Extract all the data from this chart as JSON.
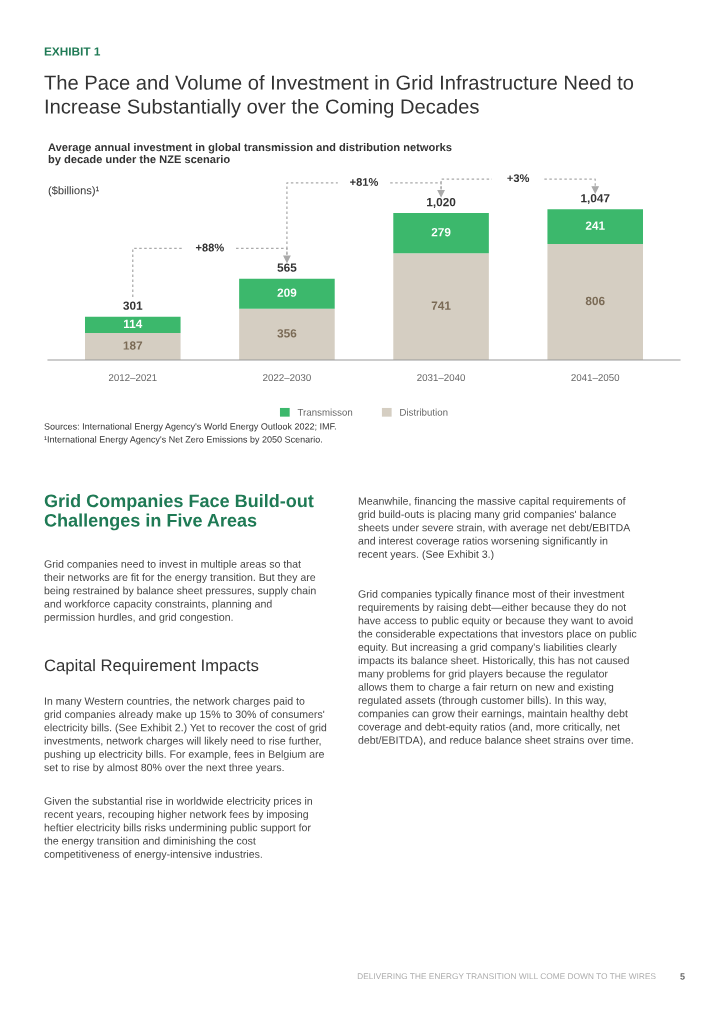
{
  "chart_data": {
    "type": "bar",
    "stacked": true,
    "data_labels": true,
    "grid": false,
    "legend": "bottom",
    "title": "The Pace and Volume of Investment in Grid Infrastructure Need to\nIncrease Substantially over the Coming Decades",
    "subtitle": "Average annual investment in global transmission and distribution networks\nby decade under the NZE scenario",
    "ylabel": "($billions)¹",
    "categories": [
      "2012–2021",
      "2022–2030",
      "2031–2040",
      "2041–2050"
    ],
    "series": [
      {
        "name": "Distribution",
        "color": "#d5cec2",
        "values": [
          187,
          356,
          741,
          806
        ]
      },
      {
        "name": "Transmisson",
        "color": "#3cb86c",
        "values": [
          114,
          209,
          279,
          241
        ]
      }
    ],
    "totals": [
      "301",
      "565",
      "1,020",
      "1,047"
    ],
    "annotations": [
      "EXHIBIT 1",
      "+88%",
      "+81%",
      "+3%",
      "Sources: International Energy Agency's World Energy Outlook 2022; IMF.",
      "¹International Energy Agency's Net Zero Emissions by 2050 Scenario.",
      "Grid Companies Face Build-out\nChallenges in Five Areas",
      "Grid companies need to invest in multiple areas so that\ntheir networks are fit for the energy transition. But they are\nbeing restrained by balance sheet pressures, supply chain\nand workforce capacity constraints, planning and\npermission hurdles, and grid congestion.",
      "Capital Requirement Impacts",
      "In many Western countries, the network charges paid to\ngrid companies already make up 15% to 30% of consumers'\nelectricity bills. (See Exhibit 2.) Yet to recover the cost of grid\ninvestments, network charges will likely need to rise further,\npushing up electricity bills. For example, fees in Belgium are\nset to rise by almost 80% over the next three years.",
      "Given the substantial rise in worldwide electricity prices in\nrecent years, recouping higher network fees by imposing\nheftier electricity bills risks undermining public support for\nthe energy transition and diminishing the cost\ncompetitiveness of energy-intensive industries.",
      "Meanwhile, financing the massive capital requirements of\ngrid build-outs is placing many grid companies' balance\nsheets under severe strain, with average net debt/EBITDA\nand interest coverage ratios worsening significantly in\nrecent years. (See Exhibit 3.)",
      "Grid companies typically finance most of their investment\nrequirements by raising debt—either because they do not\nhave access to public equity or because they want to avoid\nthe considerable expectations that investors place on public\nequity. But increasing a grid company's liabilities clearly\nimpacts its balance sheet. Historically, this has not caused\nmany problems for grid players because the regulator\nallows them to charge a fair return on new and existing\nregulated assets (through customer bills). In this way,\ncompanies can grow their earnings, maintain healthy debt\ncoverage and debt-equity ratios (and, more critically, net\ndebt/EBITDA), and reduce balance sheet strains over time.",
      "DELIVERING THE ENERGY TRANSITION WILL COME DOWN TO THE WIRES",
      "5"
    ]
  }
}
